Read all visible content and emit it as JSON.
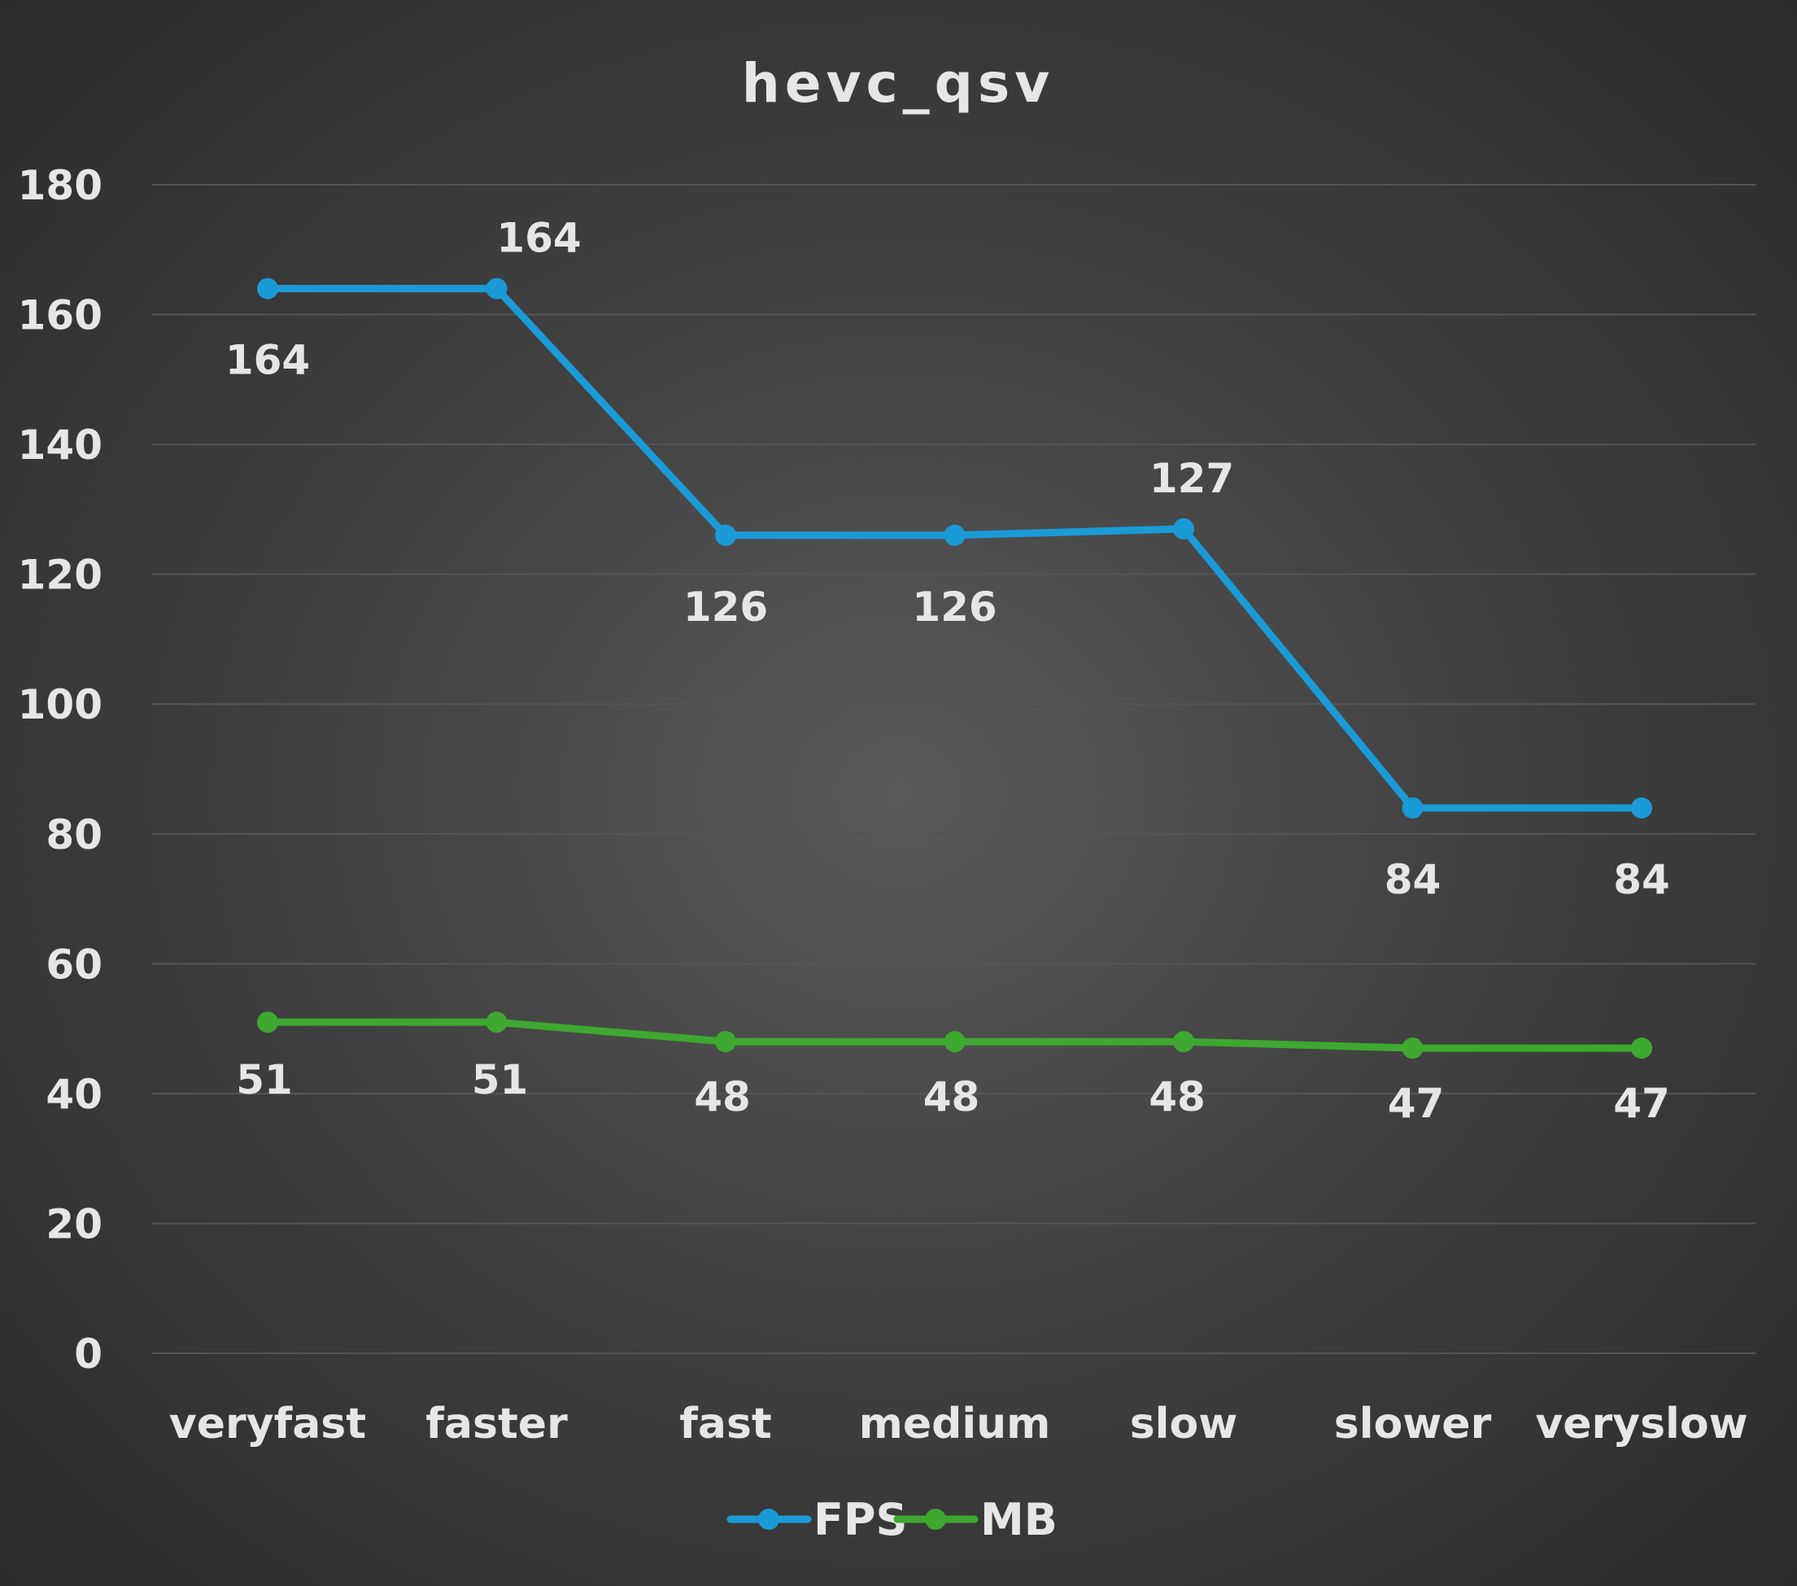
{
  "chart_data": {
    "type": "line",
    "title": "hevc_qsv",
    "categories": [
      "veryfast",
      "faster",
      "fast",
      "medium",
      "slow",
      "slower",
      "veryslow"
    ],
    "ylim": [
      0,
      180
    ],
    "yticks": [
      0,
      20,
      40,
      60,
      80,
      100,
      120,
      140,
      160,
      180
    ],
    "grid": true,
    "legend_position": "bottom",
    "series": [
      {
        "name": "FPS",
        "color": "#1a9bd7",
        "values": [
          164,
          164,
          126,
          126,
          127,
          84,
          84
        ],
        "labels": [
          "164",
          "164",
          "126",
          "126",
          "127",
          "84",
          "84"
        ]
      },
      {
        "name": "MB",
        "color": "#3ea830",
        "values": [
          51,
          51,
          48,
          48,
          48,
          47,
          47
        ],
        "labels": [
          "51",
          "51",
          "48",
          "48",
          "48",
          "47",
          "47"
        ]
      }
    ]
  }
}
